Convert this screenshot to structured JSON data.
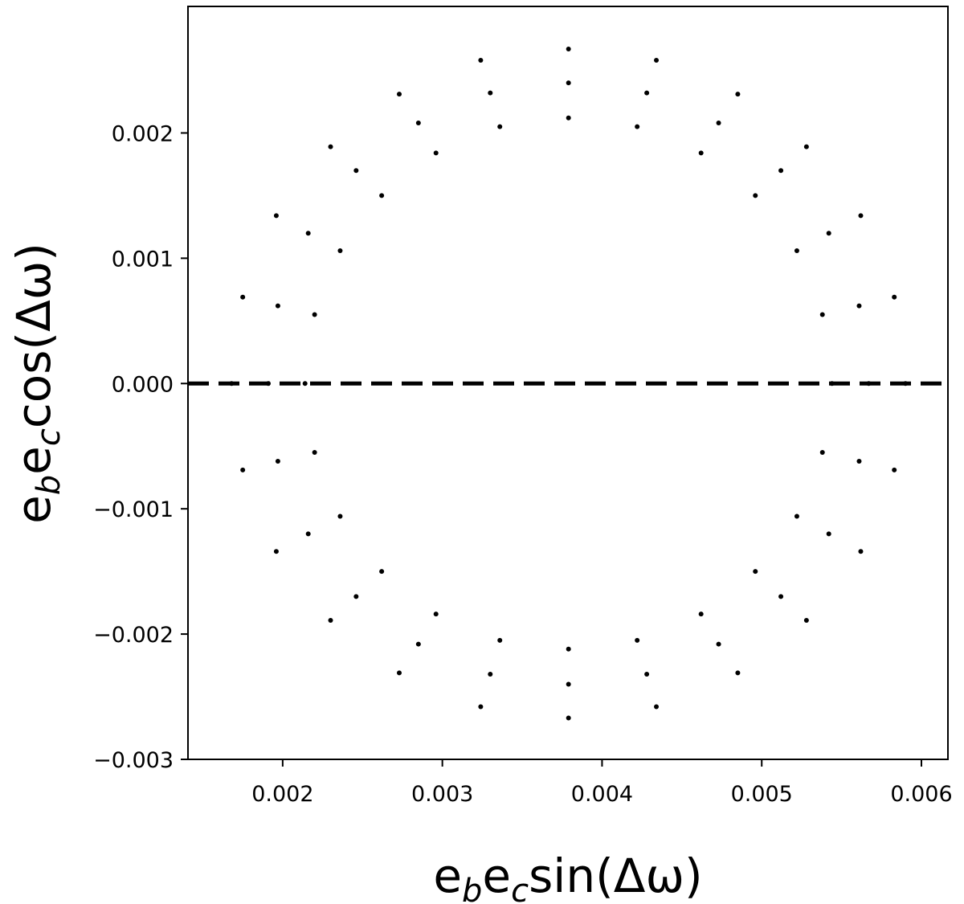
{
  "chart_data": {
    "type": "scatter",
    "xlabel": [
      "e",
      "b",
      "e",
      "c",
      "sin(Δω)"
    ],
    "ylabel": [
      "e",
      "b",
      "e",
      "c",
      "cos(Δω)"
    ],
    "color": "#000000",
    "hline": 0,
    "xlim": [
      0.001407,
      0.006166
    ],
    "ylim": [
      -0.003,
      0.00301
    ],
    "xticks": [
      0.002,
      0.003,
      0.004,
      0.005,
      0.006
    ],
    "yticks": [
      {
        "value": -0.003,
        "label": "−0.003"
      },
      {
        "value": -0.002,
        "label": "−0.002"
      },
      {
        "value": -0.001,
        "label": "−0.001"
      },
      {
        "value": 0,
        "label": "0.000"
      },
      0.001,
      0.002
    ],
    "x": [
      0.00544,
      0.00538,
      0.00522,
      0.00496,
      0.00462,
      0.00422,
      0.00379,
      0.00336,
      0.00296,
      0.00262,
      0.00236,
      0.0022,
      0.00214,
      0.0022,
      0.00236,
      0.00262,
      0.00296,
      0.00336,
      0.00379,
      0.00422,
      0.00462,
      0.00496,
      0.00522,
      0.00538,
      0.00567,
      0.00561,
      0.00542,
      0.00512,
      0.00473,
      0.00428,
      0.00379,
      0.0033,
      0.00285,
      0.00246,
      0.00216,
      0.00197,
      0.00191,
      0.00197,
      0.00216,
      0.00246,
      0.00285,
      0.0033,
      0.00379,
      0.00428,
      0.00473,
      0.00512,
      0.00542,
      0.00561,
      0.0059,
      0.00583,
      0.00562,
      0.00528,
      0.00485,
      0.00434,
      0.00379,
      0.00324,
      0.00273,
      0.0023,
      0.00196,
      0.00175,
      0.00168,
      0.00175,
      0.00196,
      0.0023,
      0.00273,
      0.00324,
      0.00379,
      0.00434,
      0.00485,
      0.00528,
      0.00562,
      0.00583
    ],
    "y": [
      0,
      0.00055,
      0.00106,
      0.0015,
      0.00184,
      0.00205,
      0.00212,
      0.00205,
      0.00184,
      0.0015,
      0.00106,
      0.00055,
      0,
      -0.00055,
      -0.00106,
      -0.0015,
      -0.00184,
      -0.00205,
      -0.00212,
      -0.00205,
      -0.00184,
      -0.0015,
      -0.00106,
      -0.00055,
      0,
      0.00062,
      0.0012,
      0.0017,
      0.00208,
      0.00232,
      0.0024,
      0.00232,
      0.00208,
      0.0017,
      0.0012,
      0.00062,
      0,
      -0.00062,
      -0.0012,
      -0.0017,
      -0.00208,
      -0.00232,
      -0.0024,
      -0.00232,
      -0.00208,
      -0.0017,
      -0.0012,
      -0.00062,
      0,
      0.00069,
      0.00134,
      0.00189,
      0.00231,
      0.00258,
      0.00267,
      0.00258,
      0.00231,
      0.00189,
      0.00134,
      0.00069,
      0,
      -0.00069,
      -0.00134,
      -0.00189,
      -0.00231,
      -0.00258,
      -0.00267,
      -0.00258,
      -0.00231,
      -0.00189,
      -0.00134,
      -0.00069
    ]
  }
}
